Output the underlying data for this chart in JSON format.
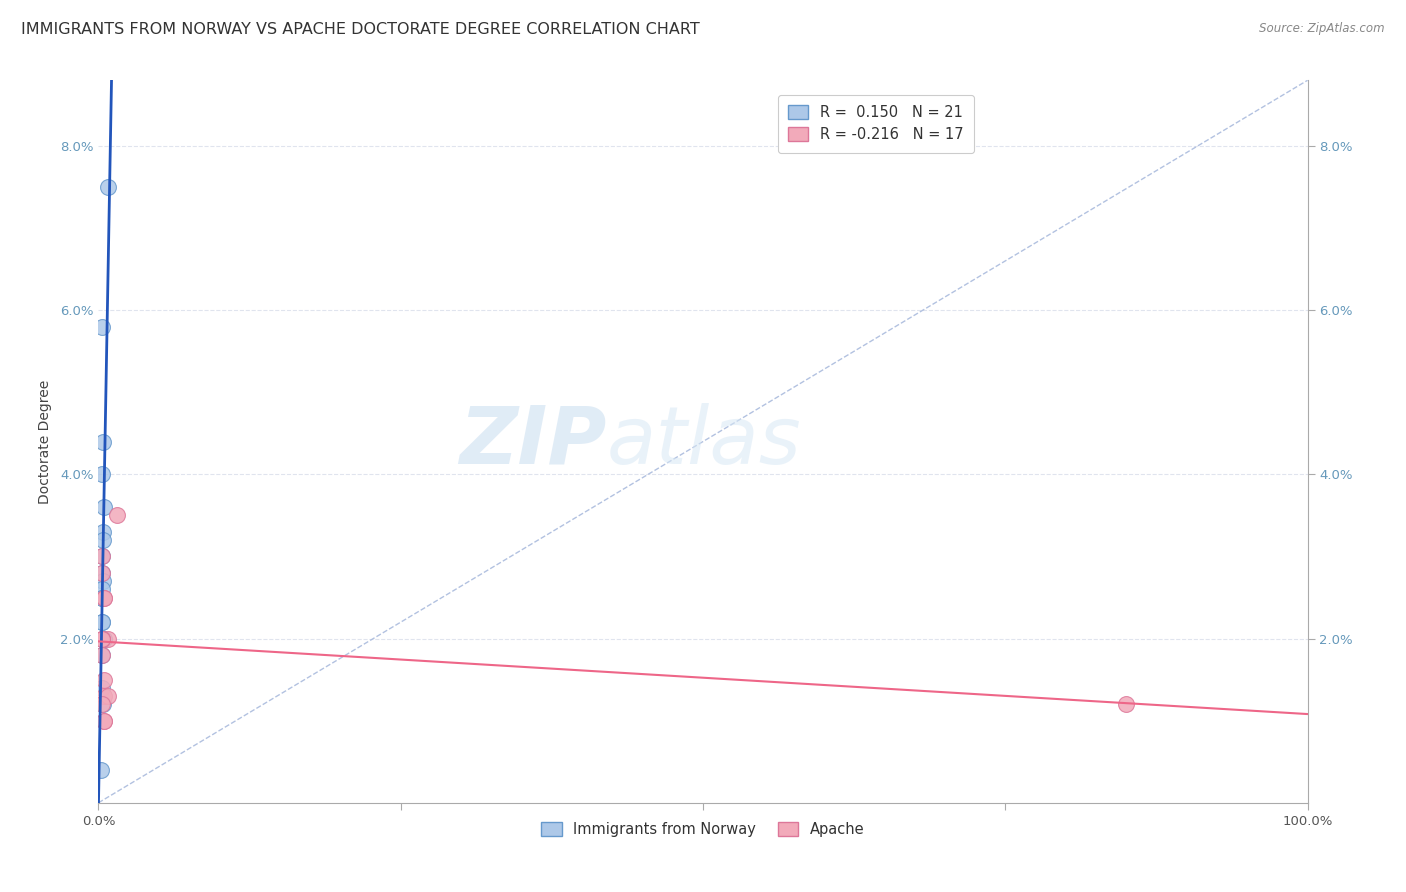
{
  "title": "IMMIGRANTS FROM NORWAY VS APACHE DOCTORATE DEGREE CORRELATION CHART",
  "source": "Source: ZipAtlas.com",
  "ylabel": "Doctorate Degree",
  "watermark_zip": "ZIP",
  "watermark_atlas": "atlas",
  "xlim": [
    0,
    1.0
  ],
  "ylim": [
    0,
    0.088
  ],
  "legend_r1": "R =  0.150",
  "legend_n1": "N = 21",
  "legend_r2": "R = -0.216",
  "legend_n2": "N = 17",
  "norway_color": "#adc8e8",
  "apache_color": "#f2aaba",
  "norway_edge_color": "#6699cc",
  "apache_edge_color": "#dd7799",
  "trend_norway_color": "#2255bb",
  "trend_apache_color": "#ee6688",
  "diag_color": "#aabbdd",
  "norway_x": [
    0.008,
    0.003,
    0.004,
    0.003,
    0.005,
    0.004,
    0.004,
    0.003,
    0.003,
    0.004,
    0.003,
    0.003,
    0.003,
    0.003,
    0.003,
    0.003,
    0.005,
    0.003,
    0.003,
    0.004,
    0.002
  ],
  "norway_y": [
    0.075,
    0.058,
    0.044,
    0.04,
    0.036,
    0.033,
    0.032,
    0.03,
    0.028,
    0.027,
    0.026,
    0.025,
    0.025,
    0.022,
    0.022,
    0.02,
    0.02,
    0.018,
    0.014,
    0.012,
    0.004
  ],
  "apache_x": [
    0.003,
    0.003,
    0.005,
    0.015,
    0.005,
    0.008,
    0.003,
    0.003,
    0.005,
    0.005,
    0.008,
    0.003,
    0.005,
    0.005,
    0.003,
    0.85,
    0.003
  ],
  "apache_y": [
    0.03,
    0.028,
    0.025,
    0.035,
    0.025,
    0.02,
    0.02,
    0.018,
    0.015,
    0.013,
    0.013,
    0.012,
    0.01,
    0.01,
    0.02,
    0.012,
    0.02
  ],
  "marker_size": 130,
  "background_color": "#ffffff",
  "grid_color": "#e0e4ee",
  "title_fontsize": 11.5,
  "axis_label_fontsize": 10,
  "tick_fontsize": 9.5
}
